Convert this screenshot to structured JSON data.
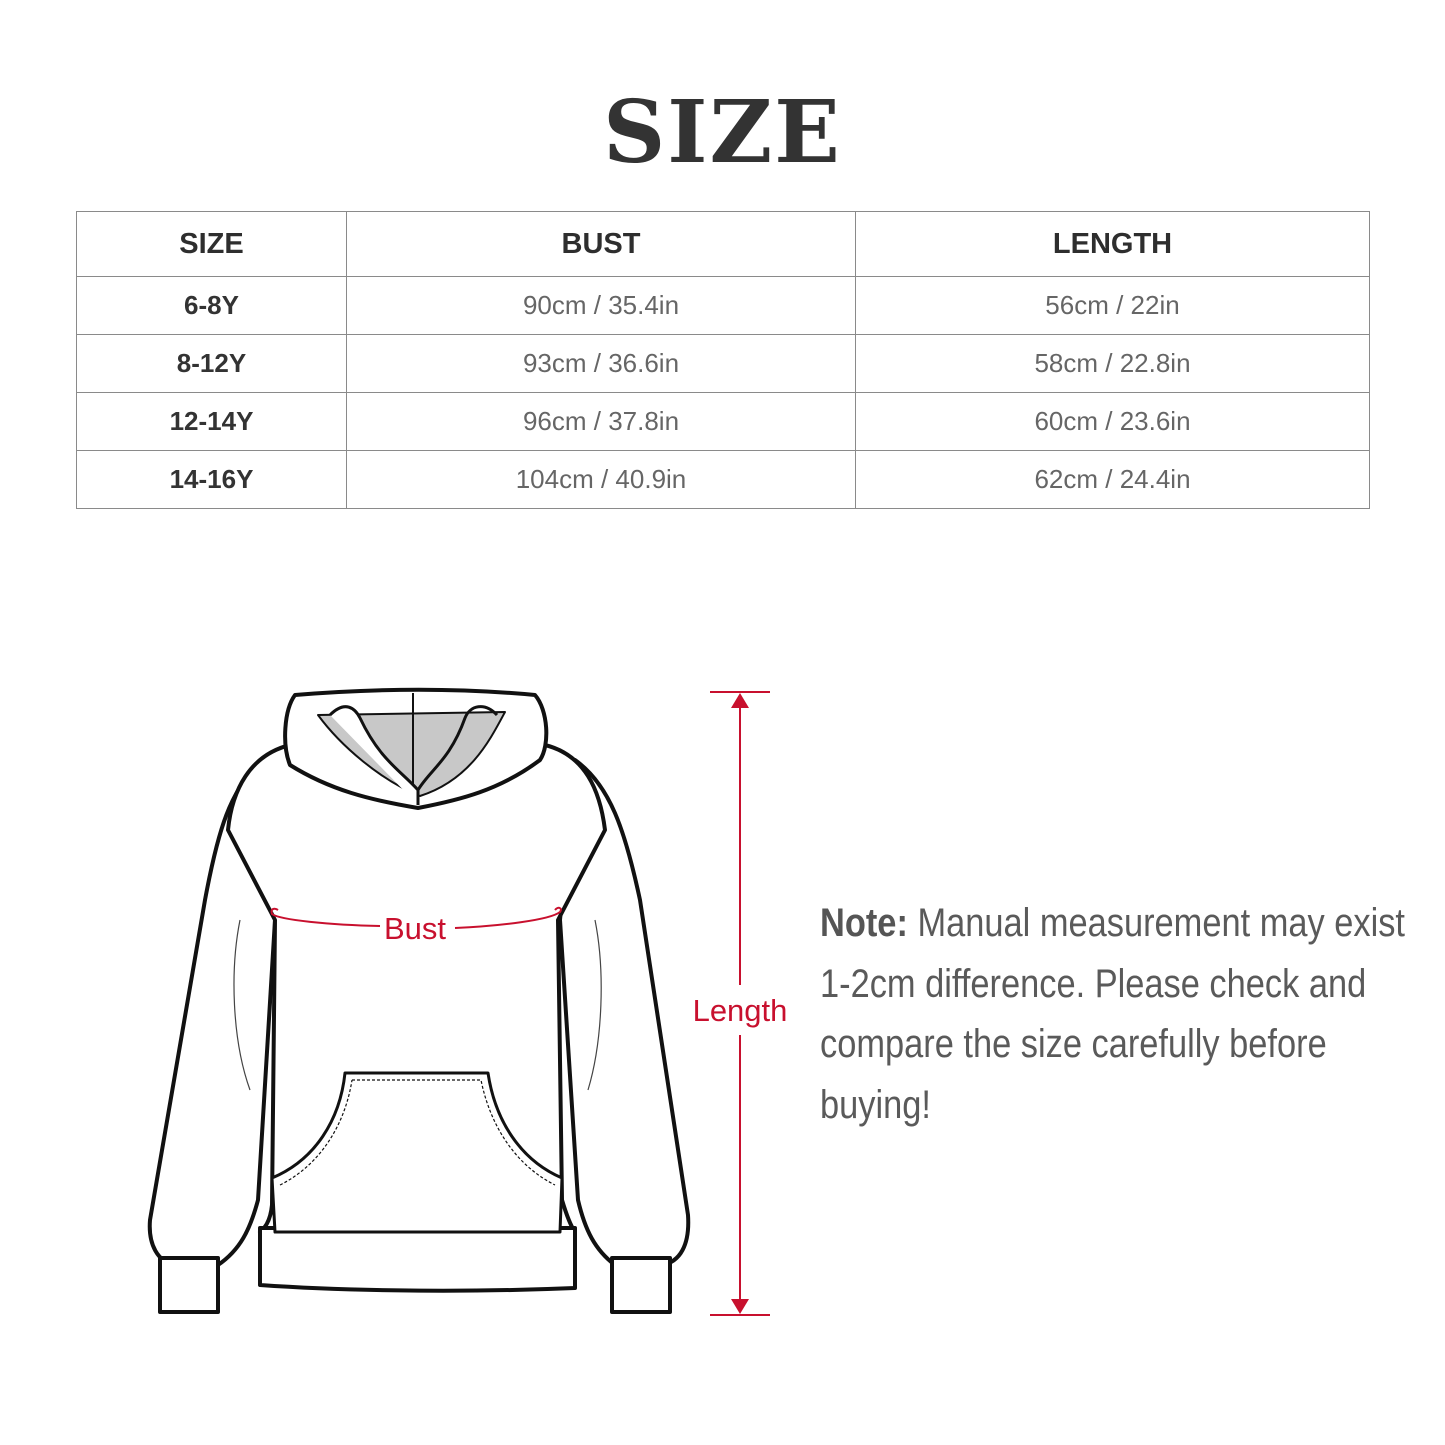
{
  "title": "SIZE",
  "table": {
    "headers": [
      "SIZE",
      "BUST",
      "LENGTH"
    ],
    "rows": [
      {
        "size": "6-8Y",
        "bust": "90cm / 35.4in",
        "length": "56cm / 22in"
      },
      {
        "size": "8-12Y",
        "bust": "93cm / 36.6in",
        "length": "58cm / 22.8in"
      },
      {
        "size": "12-14Y",
        "bust": "96cm / 37.8in",
        "length": "60cm / 23.6in"
      },
      {
        "size": "14-16Y",
        "bust": "104cm / 40.9in",
        "length": "62cm / 24.4in"
      }
    ]
  },
  "diagram": {
    "bust_label": "Bust",
    "length_label": "Length",
    "accent_color": "#c8102e"
  },
  "note": {
    "label": "Note:",
    "text": " Manual measurement may exist 1-2cm difference. Please check and compare the size carefully before buying!"
  }
}
